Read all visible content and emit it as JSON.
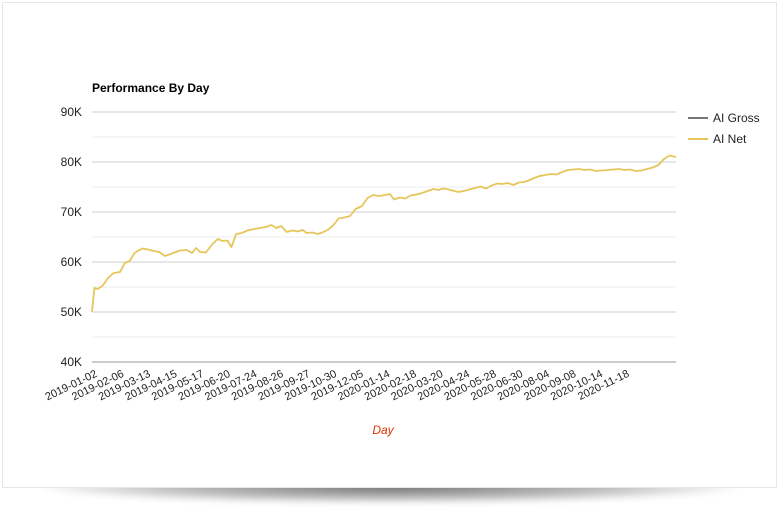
{
  "chart_data": {
    "type": "line",
    "title": "Performance By Day",
    "xlabel": "Day",
    "ylabel": "",
    "ylim": [
      40000,
      90000
    ],
    "y_ticks": [
      {
        "value": 40000,
        "label": "40K"
      },
      {
        "value": 50000,
        "label": "50K"
      },
      {
        "value": 60000,
        "label": "60K"
      },
      {
        "value": 70000,
        "label": "70K"
      },
      {
        "value": 80000,
        "label": "80K"
      },
      {
        "value": 90000,
        "label": "90K"
      }
    ],
    "x_tick_labels": [
      "2019-01-02",
      "2019-02-06",
      "2019-03-13",
      "2019-04-15",
      "2019-05-17",
      "2019-06-20",
      "2019-07-24",
      "2019-08-26",
      "2019-09-27",
      "2019-10-30",
      "2019-12-05",
      "2020-01-14",
      "2020-02-18",
      "2020-03-20",
      "2020-04-24",
      "2020-05-28",
      "2020-06-30",
      "2020-08-04",
      "2020-09-08",
      "2020-10-14",
      "2020-11-18"
    ],
    "x_range": [
      "2019-01-02",
      "2020-12-31"
    ],
    "grid": true,
    "legend_placement": "top-right",
    "series": [
      {
        "name": "AI Gross",
        "color": "#777777",
        "x": [],
        "y": []
      },
      {
        "name": "AI Net",
        "color": "#e6c65a",
        "x": [
          "2019-01-02",
          "2019-01-05",
          "2019-01-09",
          "2019-01-15",
          "2019-01-22",
          "2019-01-29",
          "2019-02-06",
          "2019-02-12",
          "2019-02-18",
          "2019-02-24",
          "2019-03-01",
          "2019-03-06",
          "2019-03-13",
          "2019-03-20",
          "2019-03-27",
          "2019-04-03",
          "2019-04-10",
          "2019-04-15",
          "2019-04-22",
          "2019-04-30",
          "2019-05-07",
          "2019-05-12",
          "2019-05-17",
          "2019-05-24",
          "2019-06-01",
          "2019-06-08",
          "2019-06-14",
          "2019-06-20",
          "2019-06-25",
          "2019-07-01",
          "2019-07-08",
          "2019-07-15",
          "2019-07-24",
          "2019-07-31",
          "2019-08-07",
          "2019-08-14",
          "2019-08-20",
          "2019-08-26",
          "2019-09-02",
          "2019-09-09",
          "2019-09-16",
          "2019-09-22",
          "2019-09-27",
          "2019-10-04",
          "2019-10-11",
          "2019-10-18",
          "2019-10-24",
          "2019-10-30",
          "2019-11-06",
          "2019-11-13",
          "2019-11-20",
          "2019-11-27",
          "2019-12-05",
          "2019-12-12",
          "2019-12-19",
          "2019-12-26",
          "2020-01-03",
          "2020-01-09",
          "2020-01-14",
          "2020-01-21",
          "2020-01-28",
          "2020-02-04",
          "2020-02-11",
          "2020-02-18",
          "2020-02-25",
          "2020-03-03",
          "2020-03-10",
          "2020-03-15",
          "2020-03-20",
          "2020-03-27",
          "2020-04-03",
          "2020-04-10",
          "2020-04-17",
          "2020-04-24",
          "2020-05-01",
          "2020-05-08",
          "2020-05-15",
          "2020-05-22",
          "2020-05-28",
          "2020-06-04",
          "2020-06-11",
          "2020-06-18",
          "2020-06-24",
          "2020-06-30",
          "2020-07-07",
          "2020-07-14",
          "2020-07-21",
          "2020-07-28",
          "2020-08-04",
          "2020-08-11",
          "2020-08-18",
          "2020-08-25",
          "2020-09-01",
          "2020-09-08",
          "2020-09-15",
          "2020-09-22",
          "2020-09-29",
          "2020-10-07",
          "2020-10-14",
          "2020-10-21",
          "2020-10-28",
          "2020-11-04",
          "2020-11-11",
          "2020-11-18",
          "2020-11-25",
          "2020-12-02",
          "2020-12-09",
          "2020-12-16",
          "2020-12-23",
          "2020-12-31"
        ],
        "y": [
          50000,
          54800,
          54600,
          55200,
          56800,
          57800,
          58000,
          59800,
          60200,
          61800,
          62300,
          62700,
          62500,
          62200,
          62000,
          61200,
          61600,
          61900,
          62300,
          62400,
          61800,
          62800,
          62000,
          61900,
          63500,
          64600,
          64200,
          64300,
          63000,
          65600,
          65800,
          66300,
          66600,
          66800,
          67000,
          67400,
          66800,
          67200,
          66000,
          66300,
          66100,
          66400,
          65800,
          65900,
          65600,
          66000,
          66500,
          67300,
          68700,
          68900,
          69200,
          70600,
          71200,
          72800,
          73400,
          73200,
          73400,
          73600,
          72500,
          72900,
          72700,
          73300,
          73500,
          73800,
          74200,
          74600,
          74400,
          74700,
          74600,
          74300,
          74000,
          74200,
          74500,
          74800,
          75100,
          74700,
          75300,
          75700,
          75600,
          75800,
          75400,
          75900,
          76000,
          76300,
          76800,
          77200,
          77400,
          77600,
          77500,
          78000,
          78400,
          78500,
          78600,
          78400,
          78500,
          78200,
          78300,
          78400,
          78500,
          78600,
          78400,
          78500,
          78200,
          78300,
          78600,
          78900,
          79400,
          80600,
          81300,
          81000
        ]
      }
    ]
  }
}
